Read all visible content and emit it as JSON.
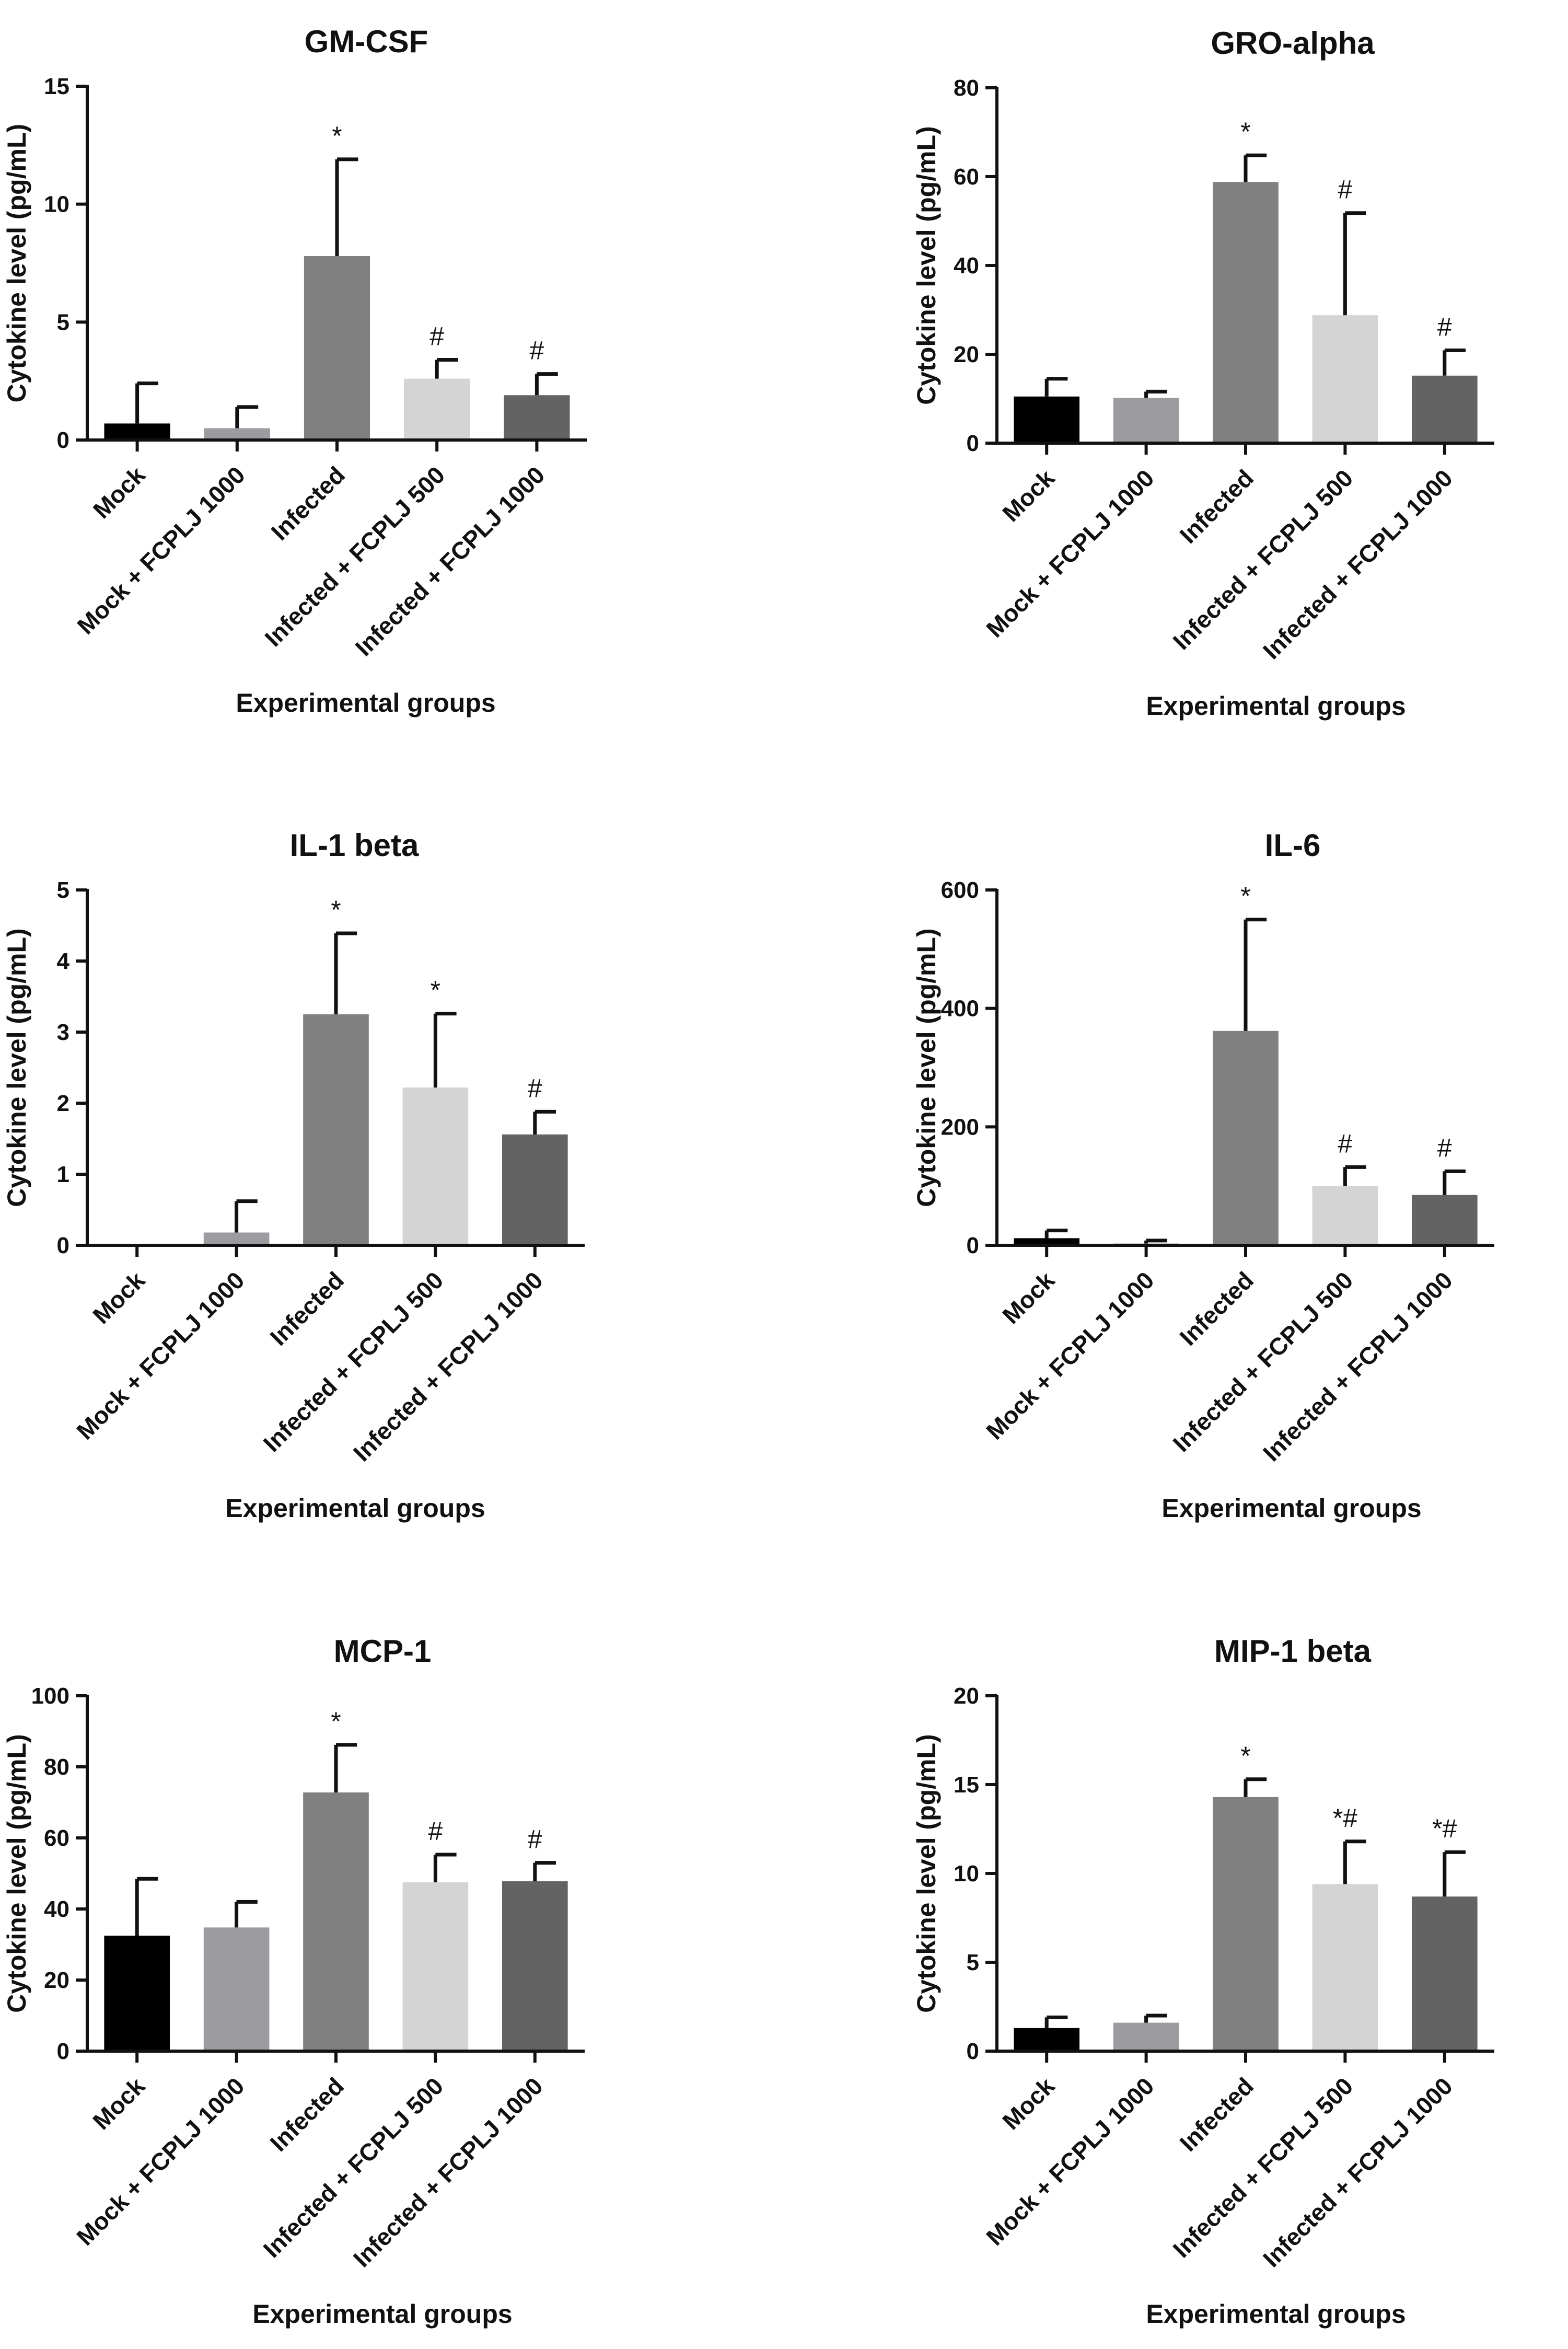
{
  "figure": {
    "background": "#ffffff",
    "ink": "#111111",
    "bar_colors": [
      "#000000",
      "#9b9ba0",
      "#808080",
      "#d4d4d4",
      "#636363"
    ]
  },
  "chart_data": [
    {
      "type": "bar",
      "title": "GM-CSF",
      "xlabel": "Experimental groups",
      "ylabel": "Cytokine level (pg/mL)",
      "ylim": [
        0,
        15
      ],
      "yticks": [
        0,
        5,
        10,
        15
      ],
      "categories": [
        "Mock",
        "Mock + FCPLJ 1000",
        "Infected",
        "Infected + FCPLJ 500",
        "Infected + FCPLJ 1000"
      ],
      "values": [
        0.7,
        0.5,
        7.8,
        2.6,
        1.9
      ],
      "errors": [
        1.7,
        0.9,
        4.1,
        0.8,
        0.9
      ],
      "annotations": [
        "",
        "",
        "*",
        "#",
        "#"
      ]
    },
    {
      "type": "bar",
      "title": "GRO-alpha",
      "xlabel": "Experimental groups",
      "ylabel": "Cytokine level (pg/mL)",
      "ylim": [
        0,
        80
      ],
      "yticks": [
        0,
        20,
        40,
        60,
        80
      ],
      "categories": [
        "Mock",
        "Mock + FCPLJ 1000",
        "Infected",
        "Infected + FCPLJ 500",
        "Infected + FCPLJ 1000"
      ],
      "values": [
        10.5,
        10.2,
        58.8,
        28.8,
        15.2
      ],
      "errors": [
        4.0,
        1.4,
        6.0,
        23.0,
        5.7
      ],
      "annotations": [
        "",
        "",
        "*",
        "#",
        "#"
      ]
    },
    {
      "type": "bar",
      "title": "IL-1 beta",
      "xlabel": "Experimental groups",
      "ylabel": "Cytokine level (pg/mL)",
      "ylim": [
        0,
        5
      ],
      "yticks": [
        0,
        1,
        2,
        3,
        4,
        5
      ],
      "categories": [
        "Mock",
        "Mock + FCPLJ 1000",
        "Infected",
        "Infected + FCPLJ 500",
        "Infected + FCPLJ 1000"
      ],
      "values": [
        0,
        0.18,
        3.25,
        2.22,
        1.56
      ],
      "errors": [
        0,
        0.44,
        1.14,
        1.04,
        0.32
      ],
      "annotations": [
        "",
        "",
        "*",
        "*",
        "#"
      ]
    },
    {
      "type": "bar",
      "title": "IL-6",
      "xlabel": "Experimental groups",
      "ylabel": "Cytokine level (pg/mL)",
      "ylim": [
        0,
        600
      ],
      "yticks": [
        0,
        200,
        400,
        600
      ],
      "categories": [
        "Mock",
        "Mock + FCPLJ 1000",
        "Infected",
        "Infected + FCPLJ 500",
        "Infected + FCPLJ 1000"
      ],
      "values": [
        12,
        3,
        362,
        100,
        85
      ],
      "errors": [
        13,
        5,
        188,
        32,
        40
      ],
      "annotations": [
        "",
        "",
        "*",
        "#",
        "#"
      ]
    },
    {
      "type": "bar",
      "title": "MCP-1",
      "xlabel": "Experimental groups",
      "ylabel": "Cytokine level (pg/mL)",
      "ylim": [
        0,
        100
      ],
      "yticks": [
        0,
        20,
        40,
        60,
        80,
        100
      ],
      "categories": [
        "Mock",
        "Mock + FCPLJ 1000",
        "Infected",
        "Infected + FCPLJ 500",
        "Infected + FCPLJ 1000"
      ],
      "values": [
        32.5,
        34.8,
        72.8,
        47.5,
        47.8
      ],
      "errors": [
        16.0,
        7.2,
        13.4,
        7.8,
        5.2
      ],
      "annotations": [
        "",
        "",
        "*",
        "#",
        "#"
      ]
    },
    {
      "type": "bar",
      "title": "MIP-1 beta",
      "xlabel": "Experimental groups",
      "ylabel": "Cytokine level (pg/mL)",
      "ylim": [
        0,
        20
      ],
      "yticks": [
        0,
        5,
        10,
        15,
        20
      ],
      "categories": [
        "Mock",
        "Mock + FCPLJ 1000",
        "Infected",
        "Infected + FCPLJ 500",
        "Infected + FCPLJ 1000"
      ],
      "values": [
        1.3,
        1.6,
        14.3,
        9.4,
        8.7
      ],
      "errors": [
        0.6,
        0.4,
        1.0,
        2.4,
        2.5
      ],
      "annotations": [
        "",
        "",
        "*",
        "*#",
        "*#"
      ]
    }
  ]
}
